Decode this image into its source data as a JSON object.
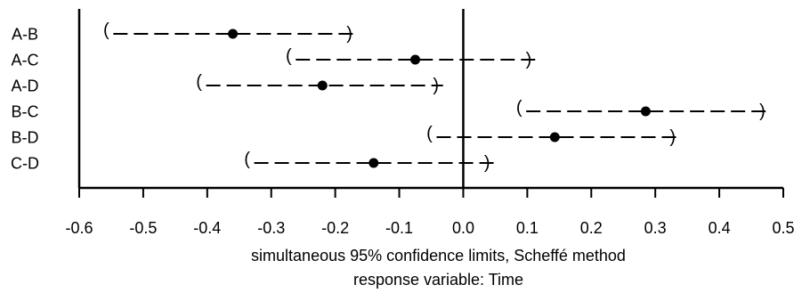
{
  "chart_data": {
    "type": "interval",
    "categories": [
      "A-B",
      "A-C",
      "A-D",
      "B-C",
      "B-D",
      "C-D"
    ],
    "estimates": [
      -0.36,
      -0.075,
      -0.22,
      0.285,
      0.143,
      -0.14
    ],
    "lower": [
      -0.555,
      -0.27,
      -0.41,
      0.09,
      -0.05,
      -0.335
    ],
    "upper": [
      -0.175,
      0.105,
      -0.04,
      0.47,
      0.33,
      0.04
    ],
    "xlim": [
      -0.6,
      0.5
    ],
    "xticks": [
      "-0.6",
      "-0.5",
      "-0.4",
      "-0.3",
      "-0.2",
      "-0.1",
      "0.0",
      "0.1",
      "0.2",
      "0.3",
      "0.4",
      "0.5"
    ],
    "reference_line": 0,
    "xlabel": "simultaneous  95% confidence limits, Scheffé method",
    "xlabel2": "response variable: Time",
    "grid": false,
    "colors": {
      "ink": "#000000",
      "background": "#ffffff"
    }
  }
}
